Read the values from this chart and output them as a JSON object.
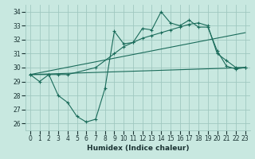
{
  "xlabel": "Humidex (Indice chaleur)",
  "bg_color": "#c8e8e0",
  "grid_color": "#a0c8c0",
  "line_color": "#1a6b5a",
  "xlim": [
    -0.5,
    23.5
  ],
  "ylim": [
    25.5,
    34.5
  ],
  "yticks": [
    26,
    27,
    28,
    29,
    30,
    31,
    32,
    33,
    34
  ],
  "xticks": [
    0,
    1,
    2,
    3,
    4,
    5,
    6,
    7,
    8,
    9,
    10,
    11,
    12,
    13,
    14,
    15,
    16,
    17,
    18,
    19,
    20,
    21,
    22,
    23
  ],
  "series": [
    {
      "x": [
        0,
        1,
        2,
        3,
        4,
        5,
        6,
        7,
        8,
        9,
        10,
        11,
        12,
        13,
        14,
        15,
        16,
        17,
        18,
        19,
        20,
        21,
        22,
        23
      ],
      "y": [
        29.5,
        29.0,
        29.5,
        28.0,
        27.5,
        26.5,
        26.1,
        26.3,
        28.5,
        32.6,
        31.7,
        31.8,
        32.8,
        32.7,
        34.0,
        33.2,
        33.0,
        33.4,
        32.9,
        32.9,
        31.2,
        30.1,
        29.9,
        30.0
      ]
    },
    {
      "x": [
        0,
        2,
        3,
        4,
        7,
        9,
        10,
        11,
        12,
        13,
        14,
        15,
        16,
        17,
        18,
        19,
        20,
        21,
        22,
        23
      ],
      "y": [
        29.5,
        29.5,
        29.5,
        29.5,
        30.0,
        31.0,
        31.5,
        31.8,
        32.1,
        32.3,
        32.5,
        32.7,
        32.9,
        33.1,
        33.2,
        33.0,
        31.0,
        30.5,
        30.0,
        30.0
      ]
    },
    {
      "x": [
        0,
        23
      ],
      "y": [
        29.5,
        32.5
      ]
    },
    {
      "x": [
        0,
        23
      ],
      "y": [
        29.5,
        30.0
      ]
    }
  ],
  "figsize": [
    3.2,
    2.0
  ],
  "dpi": 100,
  "tick_fontsize": 5.5,
  "xlabel_fontsize": 6.5
}
